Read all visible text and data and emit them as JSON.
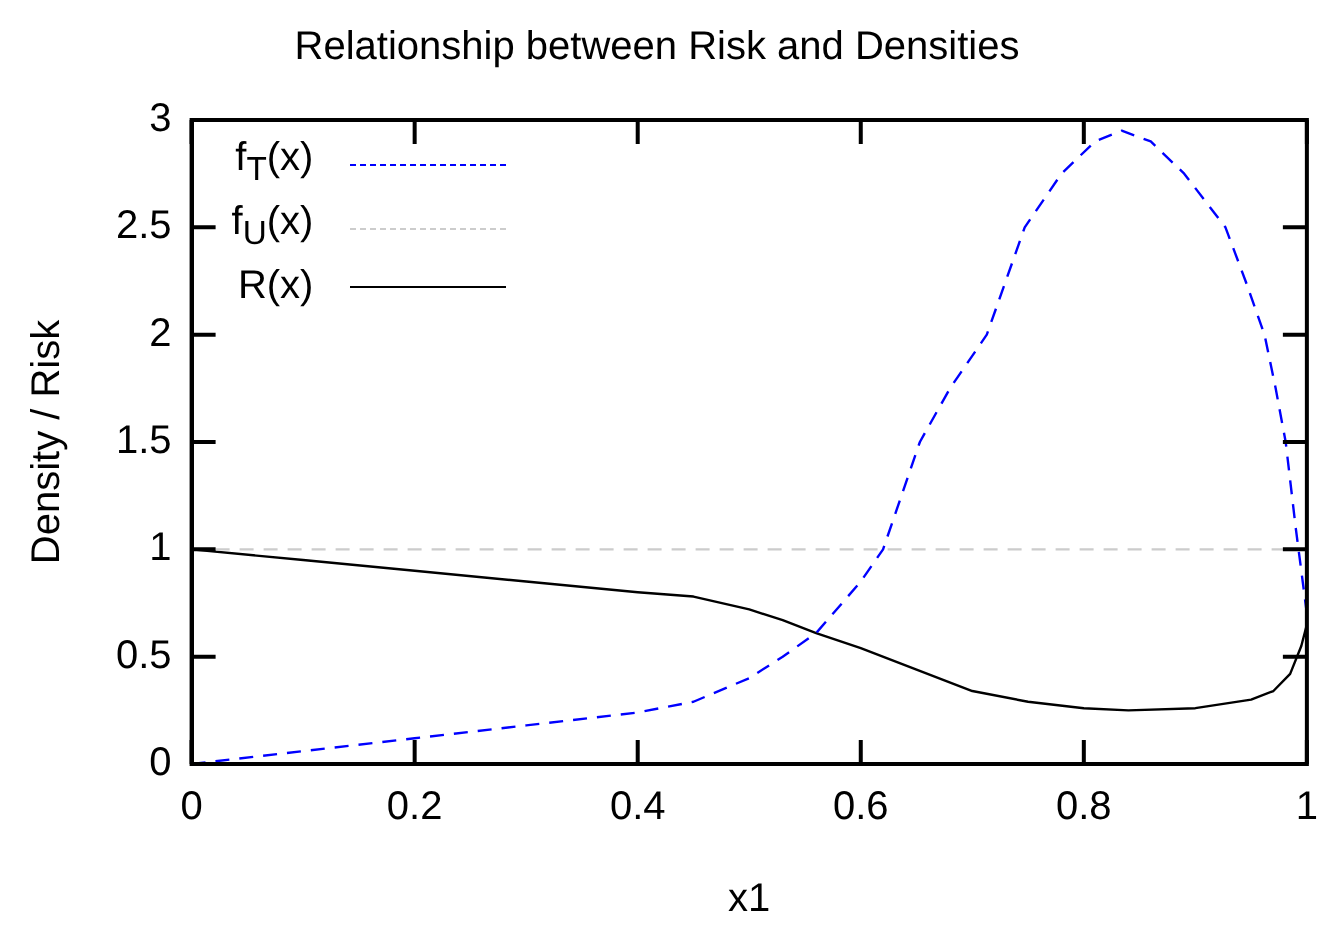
{
  "chart_data": {
    "type": "line",
    "title": "Relationship between Risk and Densities",
    "xlabel": "x1",
    "ylabel": "Density / Risk",
    "xlim": [
      0,
      1
    ],
    "xticks": [
      0,
      {
        "value": 0.2,
        "label": "0.2"
      },
      {
        "value": 0.4,
        "label": "0.4"
      },
      {
        "value": 0.6,
        "label": "0.6"
      },
      {
        "value": 0.8,
        "label": "0.8"
      },
      1
    ],
    "ylim": [
      0,
      3
    ],
    "yticks": [
      0,
      0.5,
      1,
      1.5,
      2,
      2.5,
      3
    ],
    "grid": false,
    "legend": "top left",
    "marker": "none",
    "series": [
      {
        "name": "f$_{T}$(x)",
        "color": "#0000ff",
        "line_style": "dashed",
        "x": [
          0,
          0.1,
          0.2,
          0.3,
          0.4,
          0.45,
          0.5,
          0.53,
          0.56,
          0.6,
          0.62,
          0.653,
          0.68,
          0.713,
          0.747,
          0.78,
          0.81,
          0.834,
          0.86,
          0.89,
          0.927,
          0.945,
          0.962,
          0.972,
          0.981,
          0.99,
          1
        ],
        "values": [
          0,
          0.06,
          0.12,
          0.18,
          0.24,
          0.29,
          0.4,
          0.5,
          0.61,
          0.85,
          1,
          1.5,
          1.75,
          2,
          2.5,
          2.75,
          2.9,
          2.95,
          2.9,
          2.75,
          2.5,
          2.25,
          2,
          1.75,
          1.5,
          1.1,
          0.7
        ]
      },
      {
        "name": "f$_{U}$(x)",
        "color": "#cccccc",
        "line_style": "dashed",
        "x": [
          0,
          1
        ],
        "values": [
          1,
          1
        ]
      },
      {
        "name": "R(x)",
        "color": "#000000",
        "line_style": "solid",
        "x": [
          0,
          0.1,
          0.2,
          0.3,
          0.4,
          0.45,
          0.5,
          0.53,
          0.56,
          0.6,
          0.65,
          0.7,
          0.75,
          0.8,
          0.84,
          0.9,
          0.95,
          0.97,
          0.985,
          0.995,
          1
        ],
        "values": [
          1,
          0.95,
          0.9,
          0.85,
          0.8,
          0.78,
          0.72,
          0.67,
          0.61,
          0.54,
          0.44,
          0.34,
          0.29,
          0.26,
          0.25,
          0.26,
          0.3,
          0.34,
          0.42,
          0.55,
          0.65
        ]
      }
    ]
  }
}
